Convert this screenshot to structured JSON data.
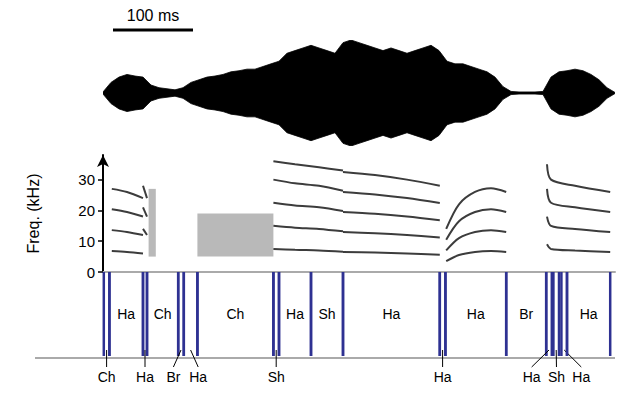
{
  "chart_data": [
    {
      "type": "waveform",
      "scale_bar": {
        "length": 100,
        "label": "100 ms"
      },
      "x": [
        0,
        10,
        20,
        30,
        40,
        50,
        60,
        70,
        80,
        90,
        100,
        110,
        120,
        130,
        140,
        150,
        160,
        170,
        180,
        190,
        200,
        210,
        220,
        230,
        240,
        250,
        260,
        270,
        280,
        290,
        300,
        310,
        320,
        330,
        340,
        350,
        360,
        370,
        380,
        390,
        400,
        410,
        420,
        430,
        440,
        450,
        460,
        470,
        480,
        490,
        500,
        510,
        520,
        530,
        540,
        550,
        560,
        570,
        580,
        590,
        600,
        610,
        620,
        630,
        640
      ],
      "values": [
        0.02,
        0.2,
        0.3,
        0.35,
        0.32,
        0.3,
        0.15,
        0.1,
        0.08,
        0.06,
        0.1,
        0.2,
        0.25,
        0.3,
        0.32,
        0.35,
        0.4,
        0.42,
        0.45,
        0.45,
        0.5,
        0.55,
        0.6,
        0.75,
        0.8,
        0.85,
        0.9,
        0.85,
        0.8,
        0.75,
        0.95,
        1.0,
        0.95,
        0.9,
        0.85,
        0.8,
        0.85,
        0.8,
        0.75,
        0.8,
        0.85,
        0.9,
        0.8,
        0.6,
        0.55,
        0.55,
        0.5,
        0.45,
        0.4,
        0.3,
        0.12,
        0.03,
        0.02,
        0.02,
        0.02,
        0.03,
        0.3,
        0.4,
        0.42,
        0.45,
        0.42,
        0.35,
        0.25,
        0.1,
        0.01
      ],
      "xlim": [
        0,
        640
      ],
      "ylim": [
        -1,
        1
      ],
      "color": "#000000",
      "tick_labels": false
    },
    {
      "type": "spectrogram",
      "ylabel": "Freq. (kHz)",
      "xlim": [
        0,
        640
      ],
      "ylim": [
        0,
        38
      ],
      "yticks": [
        0,
        10,
        20,
        30
      ],
      "tick_labels": "y",
      "color": "#3c3c3c",
      "noise_bands": [
        {
          "t": [
            57,
            66
          ],
          "f": [
            5,
            27
          ]
        },
        {
          "t": [
            118,
            213
          ],
          "f": [
            5,
            19
          ]
        }
      ],
      "contours": [
        {
          "t": [
            11,
            30,
            50
          ],
          "f": [
            6.8,
            6.5,
            6.0
          ]
        },
        {
          "t": [
            11,
            30,
            50
          ],
          "f": [
            13.6,
            13,
            12
          ]
        },
        {
          "t": [
            11,
            30,
            50
          ],
          "f": [
            20.4,
            19.5,
            18
          ]
        },
        {
          "t": [
            11,
            30,
            50
          ],
          "f": [
            27,
            26,
            24
          ]
        },
        {
          "t": [
            50,
            55
          ],
          "f": [
            14,
            12
          ]
        },
        {
          "t": [
            50,
            55
          ],
          "f": [
            21,
            18
          ]
        },
        {
          "t": [
            50,
            55
          ],
          "f": [
            28,
            24
          ]
        },
        {
          "t": [
            213,
            240,
            270,
            300
          ],
          "f": [
            7.5,
            7.2,
            7.0,
            6.6
          ]
        },
        {
          "t": [
            213,
            240,
            270,
            300
          ],
          "f": [
            15,
            14.4,
            14,
            13.2
          ]
        },
        {
          "t": [
            213,
            240,
            270,
            300
          ],
          "f": [
            22.5,
            21.6,
            21,
            19.8
          ]
        },
        {
          "t": [
            213,
            240,
            270,
            300
          ],
          "f": [
            30,
            28.8,
            28,
            26.4
          ]
        },
        {
          "t": [
            213,
            240,
            270,
            300
          ],
          "f": [
            36,
            35,
            34,
            33
          ]
        },
        {
          "t": [
            300,
            340,
            380,
            421
          ],
          "f": [
            6.5,
            6.3,
            6.0,
            5.6
          ]
        },
        {
          "t": [
            300,
            340,
            380,
            421
          ],
          "f": [
            13,
            12.6,
            12,
            11.2
          ]
        },
        {
          "t": [
            300,
            340,
            380,
            421
          ],
          "f": [
            19.5,
            18.9,
            18,
            16.8
          ]
        },
        {
          "t": [
            300,
            340,
            380,
            421
          ],
          "f": [
            26,
            25.2,
            24,
            22.4
          ]
        },
        {
          "t": [
            300,
            340,
            380,
            421
          ],
          "f": [
            32.5,
            31.5,
            30,
            28
          ]
        },
        {
          "t": [
            429,
            445,
            465,
            485,
            504
          ],
          "f": [
            3.5,
            5.5,
            6.5,
            6.8,
            6.5
          ]
        },
        {
          "t": [
            429,
            445,
            465,
            485,
            504
          ],
          "f": [
            7,
            11,
            13,
            13.6,
            13
          ]
        },
        {
          "t": [
            429,
            445,
            465,
            485,
            504
          ],
          "f": [
            10.5,
            16.5,
            19.5,
            20.4,
            19.5
          ]
        },
        {
          "t": [
            429,
            445,
            465,
            485,
            504
          ],
          "f": [
            14,
            22,
            26,
            27.2,
            26
          ]
        },
        {
          "t": [
            555,
            560,
            590,
            634
          ],
          "f": [
            9,
            7.5,
            7,
            6.5
          ]
        },
        {
          "t": [
            555,
            560,
            590,
            634
          ],
          "f": [
            18,
            15,
            14,
            13
          ]
        },
        {
          "t": [
            555,
            560,
            590,
            634
          ],
          "f": [
            27,
            22.5,
            21,
            19.5
          ]
        },
        {
          "t": [
            555,
            560,
            590,
            634
          ],
          "f": [
            35,
            30,
            28,
            26
          ]
        }
      ]
    },
    {
      "type": "segmentation",
      "xlim": [
        0,
        640
      ],
      "color": "#2e3192",
      "segments": [
        {
          "start": 1,
          "end": 8,
          "label": "Ch"
        },
        {
          "start": 8,
          "end": 50,
          "label": "Ha"
        },
        {
          "start": 50,
          "end": 55,
          "label": "Ha"
        },
        {
          "start": 55,
          "end": 94,
          "label": "Ch"
        },
        {
          "start": 94,
          "end": 101,
          "label": "Br"
        },
        {
          "start": 101,
          "end": 118,
          "label": "Ha"
        },
        {
          "start": 118,
          "end": 213,
          "label": "Ch"
        },
        {
          "start": 213,
          "end": 220,
          "label": "Sh"
        },
        {
          "start": 220,
          "end": 260,
          "label": "Ha"
        },
        {
          "start": 260,
          "end": 300,
          "label": "Sh"
        },
        {
          "start": 300,
          "end": 421,
          "label": "Ha"
        },
        {
          "start": 421,
          "end": 428,
          "label": "Ha"
        },
        {
          "start": 428,
          "end": 504,
          "label": "Ha"
        },
        {
          "start": 504,
          "end": 554,
          "label": "Br"
        },
        {
          "start": 554,
          "end": 561,
          "label": "Ha"
        },
        {
          "start": 563,
          "end": 570,
          "label": "Sh"
        },
        {
          "start": 573,
          "end": 580,
          "label": "Ha"
        },
        {
          "start": 580,
          "end": 634,
          "label": "Ha"
        }
      ]
    }
  ]
}
